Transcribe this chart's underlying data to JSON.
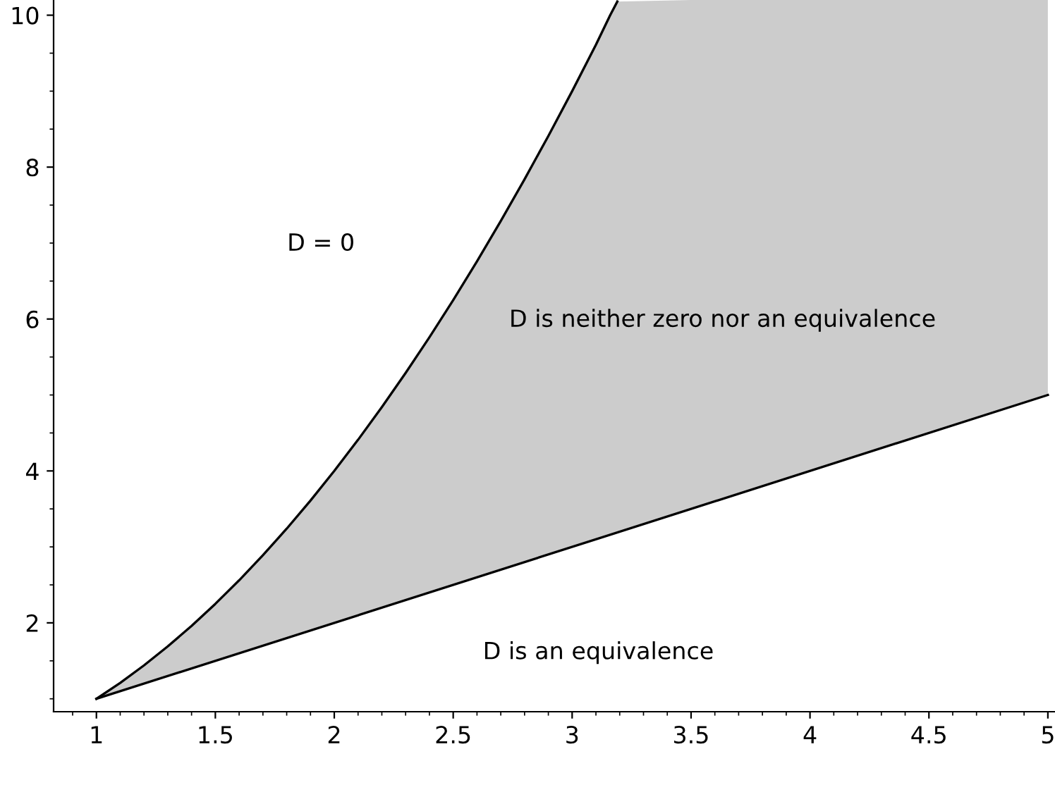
{
  "chart_data": {
    "type": "line",
    "xlim": [
      0.82,
      5.03
    ],
    "ylim": [
      0.83,
      10.2
    ],
    "xticks": [
      1,
      1.5,
      2,
      2.5,
      3,
      3.5,
      4,
      4.5,
      5
    ],
    "yticks": [
      2,
      4,
      6,
      8,
      10
    ],
    "grid": false,
    "legend": false,
    "marker": "none",
    "line_style": "solid",
    "series": [
      {
        "color": "#000000",
        "x": [
          1,
          1.1,
          1.2,
          1.3,
          1.4,
          1.5,
          1.6,
          1.7,
          1.8,
          1.9,
          2,
          2.1,
          2.2,
          2.3,
          2.4,
          2.5,
          2.6,
          2.7,
          2.8,
          2.9,
          3,
          3.1,
          3.16,
          3.19,
          3.5,
          4,
          4.5,
          5
        ],
        "values": [
          1,
          1.21,
          1.44,
          1.69,
          1.96,
          2.25,
          2.56,
          2.89,
          3.24,
          3.61,
          4,
          4.41,
          4.84,
          5.29,
          5.76,
          6.25,
          6.76,
          7.29,
          7.84,
          8.41,
          9,
          9.61,
          10,
          10.18,
          null,
          null,
          null,
          null
        ],
        "lower": [
          1,
          1.1,
          1.2,
          1.3,
          1.4,
          1.5,
          1.6,
          1.7,
          1.8,
          1.9,
          2,
          2.1,
          2.2,
          2.3,
          2.4,
          2.5,
          2.6,
          2.7,
          2.8,
          2.9,
          3,
          3.1,
          3.16,
          3.19,
          3.5,
          4,
          4.5,
          5
        ],
        "upper": [
          1,
          1.21,
          1.44,
          1.69,
          1.96,
          2.25,
          2.56,
          2.89,
          3.24,
          3.61,
          4,
          4.41,
          4.84,
          5.29,
          5.76,
          6.25,
          6.76,
          7.29,
          7.84,
          8.41,
          9,
          9.61,
          10,
          10.18,
          10.2,
          10.2,
          10.2,
          10.2
        ]
      },
      {
        "color": "#000000",
        "x": [
          1,
          5
        ],
        "values": [
          1,
          5
        ]
      }
    ],
    "annotations": [
      "D = 0",
      "D is neither zero nor an equivalence",
      "D is an equivalence"
    ]
  }
}
